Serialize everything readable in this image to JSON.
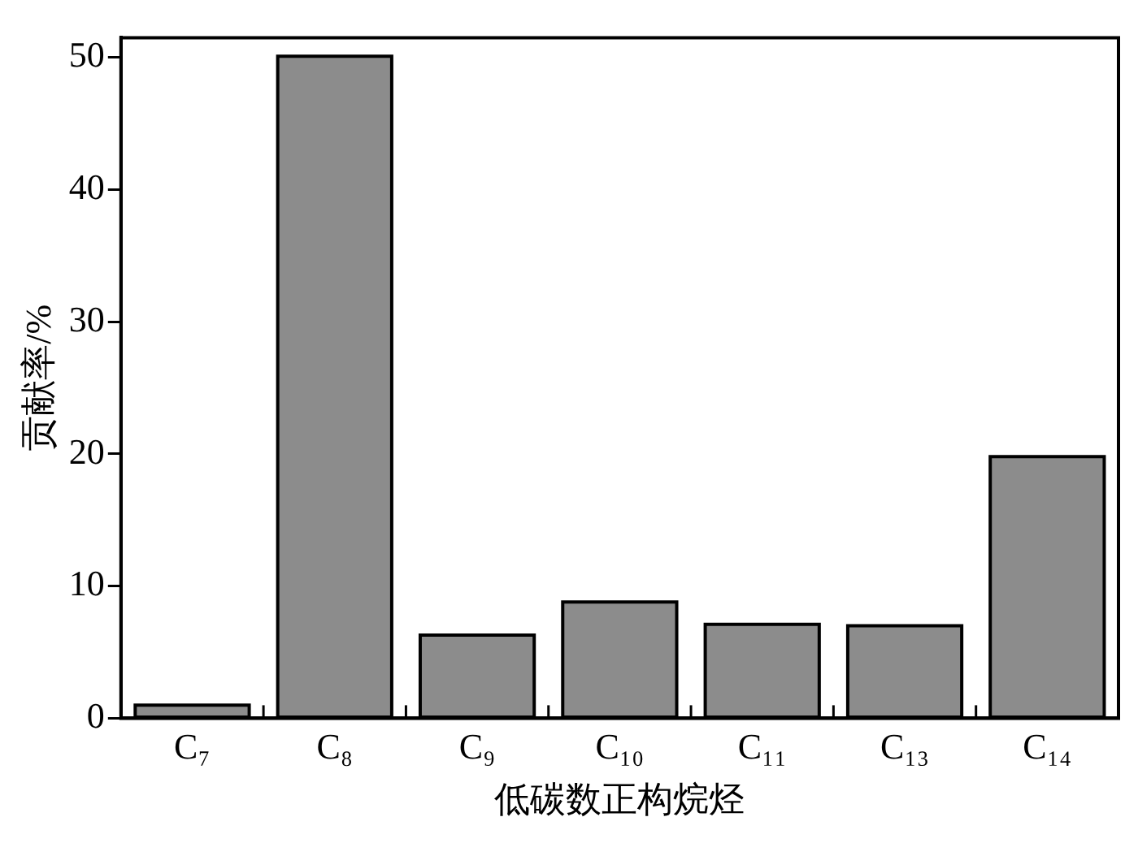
{
  "chart_data": {
    "type": "bar",
    "xlabel": "低碳数正构烷烃",
    "ylabel": "贡献率/%",
    "categories": [
      "C₇",
      "C₈",
      "C₉",
      "C₁₀",
      "C₁₁",
      "C₁₃",
      "C₁₄"
    ],
    "values": [
      1.0,
      50.1,
      6.3,
      8.8,
      7.1,
      7.0,
      19.8
    ],
    "color": "#8c8c8c",
    "ylim": [
      0,
      51.5
    ],
    "yticks": [
      0,
      10,
      20,
      30,
      40,
      50
    ],
    "grid": false,
    "legend": false
  }
}
